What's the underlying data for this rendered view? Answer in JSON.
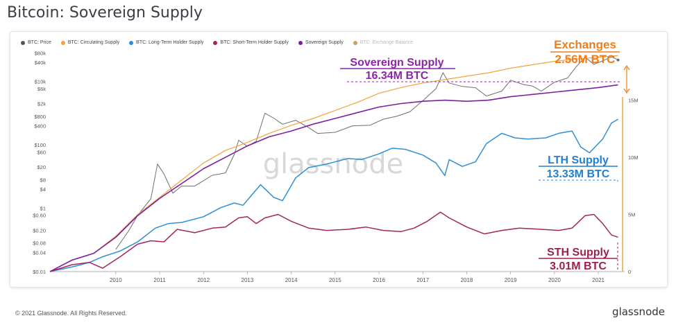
{
  "page": {
    "title": "Bitcoin: Sovereign Supply",
    "copyright": "© 2021 Glassnode. All Rights Reserved.",
    "brand": "glassnode"
  },
  "colors": {
    "price": "#6e6e6e",
    "circulating": "#f2a33a",
    "lth": "#2e8fd6",
    "sth": "#a3245e",
    "sovereign": "#7b1fa2",
    "exchange": "#b8860b",
    "exchange_annot": "#f07d19",
    "sovereign_annot": "#8e24aa",
    "lth_annot": "#1f7fd1",
    "sth_annot": "#9e1f4f"
  },
  "legend": [
    {
      "label": "BTC: Price",
      "color": "#555555",
      "faded": false
    },
    {
      "label": "BTC: Circulating Supply",
      "color": "#f2a33a",
      "faded": false
    },
    {
      "label": "BTC: Long-Term Holder Supply",
      "color": "#2e8fd6",
      "faded": false
    },
    {
      "label": "BTC: Short-Term Holder Supply",
      "color": "#a3245e",
      "faded": false
    },
    {
      "label": "Sovereign Supply",
      "color": "#7b1fa2",
      "faded": false
    },
    {
      "label": "BTC: Exchange Balance",
      "color": "#c8a060",
      "faded": true
    }
  ],
  "annotations": {
    "exchanges": {
      "title": "Exchanges",
      "value": "2.56M BTC"
    },
    "sovereign": {
      "title": "Sovereign Supply",
      "value": "16.34M BTC"
    },
    "lth": {
      "title": "LTH Supply",
      "value": "13.33M BTC"
    },
    "sth": {
      "title": "STH Supply",
      "value": "3.01M BTC"
    }
  },
  "watermark": "glassnode",
  "chart_data": {
    "type": "line",
    "title": "Bitcoin: Sovereign Supply",
    "x_ticks": [
      "2010",
      "2011",
      "2012",
      "2013",
      "2014",
      "2015",
      "2016",
      "2017",
      "2018",
      "2019",
      "2020",
      "2021"
    ],
    "y_left": {
      "scale": "log",
      "ticks": [
        "$80k",
        "$40k",
        "$10k",
        "$6k",
        "$2k",
        "$800",
        "$400",
        "$100",
        "$60",
        "$20",
        "$8",
        "$4",
        "$1",
        "$0.60",
        "$0.20",
        "$0.08",
        "$0.04",
        "$0.01"
      ],
      "tick_values": [
        80000,
        40000,
        10000,
        6000,
        2000,
        800,
        400,
        100,
        60,
        20,
        8,
        4,
        1,
        0.6,
        0.2,
        0.08,
        0.04,
        0.01
      ]
    },
    "y_right": {
      "scale": "linear",
      "ticks": [
        "15M",
        "10M",
        "5M",
        "0"
      ],
      "tick_values": [
        15000000,
        10000000,
        5000000,
        0
      ]
    },
    "series": [
      {
        "name": "BTC: Price",
        "axis": "left",
        "points": [
          [
            2010.5,
            0.05
          ],
          [
            2010.8,
            0.2
          ],
          [
            2011.0,
            0.6
          ],
          [
            2011.3,
            2
          ],
          [
            2011.45,
            25
          ],
          [
            2011.6,
            12
          ],
          [
            2011.8,
            3
          ],
          [
            2012.0,
            5
          ],
          [
            2012.3,
            5
          ],
          [
            2012.7,
            11
          ],
          [
            2013.0,
            13
          ],
          [
            2013.2,
            50
          ],
          [
            2013.3,
            140
          ],
          [
            2013.5,
            90
          ],
          [
            2013.7,
            130
          ],
          [
            2013.9,
            1000
          ],
          [
            2014.1,
            700
          ],
          [
            2014.3,
            450
          ],
          [
            2014.6,
            600
          ],
          [
            2014.9,
            350
          ],
          [
            2015.1,
            230
          ],
          [
            2015.5,
            250
          ],
          [
            2015.9,
            400
          ],
          [
            2016.3,
            420
          ],
          [
            2016.6,
            650
          ],
          [
            2016.9,
            800
          ],
          [
            2017.2,
            1100
          ],
          [
            2017.5,
            2500
          ],
          [
            2017.8,
            6000
          ],
          [
            2017.96,
            19000
          ],
          [
            2018.1,
            9000
          ],
          [
            2018.4,
            7000
          ],
          [
            2018.7,
            6400
          ],
          [
            2018.95,
            3500
          ],
          [
            2019.3,
            5000
          ],
          [
            2019.5,
            11000
          ],
          [
            2019.8,
            8000
          ],
          [
            2020.0,
            7200
          ],
          [
            2020.2,
            5000
          ],
          [
            2020.5,
            9500
          ],
          [
            2020.8,
            13000
          ],
          [
            2021.0,
            30000
          ],
          [
            2021.2,
            58000
          ],
          [
            2021.4,
            35000
          ],
          [
            2021.6,
            45000
          ],
          [
            2021.8,
            60000
          ],
          [
            2021.95,
            48000
          ]
        ]
      },
      {
        "name": "BTC: Circulating Supply",
        "axis": "right",
        "points": [
          [
            2009.0,
            0
          ],
          [
            2009.5,
            1000000
          ],
          [
            2010.0,
            1600000
          ],
          [
            2010.5,
            3100000
          ],
          [
            2011.0,
            5000000
          ],
          [
            2011.5,
            6500000
          ],
          [
            2012.0,
            8000000
          ],
          [
            2012.5,
            9500000
          ],
          [
            2013.0,
            10600000
          ],
          [
            2013.5,
            11300000
          ],
          [
            2014.0,
            12100000
          ],
          [
            2014.5,
            12800000
          ],
          [
            2015.0,
            13400000
          ],
          [
            2015.5,
            14100000
          ],
          [
            2016.0,
            14800000
          ],
          [
            2016.5,
            15600000
          ],
          [
            2017.0,
            16100000
          ],
          [
            2017.5,
            16500000
          ],
          [
            2018.0,
            16800000
          ],
          [
            2018.5,
            17100000
          ],
          [
            2019.0,
            17400000
          ],
          [
            2019.5,
            17800000
          ],
          [
            2020.0,
            18100000
          ],
          [
            2020.5,
            18400000
          ],
          [
            2021.0,
            18600000
          ],
          [
            2021.5,
            18750000
          ],
          [
            2021.95,
            18900000
          ]
        ]
      },
      {
        "name": "Sovereign Supply",
        "axis": "right",
        "points": [
          [
            2009.0,
            0
          ],
          [
            2009.5,
            1000000
          ],
          [
            2010.0,
            1600000
          ],
          [
            2010.5,
            3000000
          ],
          [
            2011.0,
            4900000
          ],
          [
            2011.5,
            6400000
          ],
          [
            2012.0,
            7700000
          ],
          [
            2012.5,
            9000000
          ],
          [
            2013.0,
            10000000
          ],
          [
            2013.5,
            11000000
          ],
          [
            2014.0,
            11800000
          ],
          [
            2014.5,
            12300000
          ],
          [
            2015.0,
            12900000
          ],
          [
            2015.5,
            13400000
          ],
          [
            2016.0,
            13900000
          ],
          [
            2016.5,
            14400000
          ],
          [
            2017.0,
            14700000
          ],
          [
            2017.5,
            14900000
          ],
          [
            2018.0,
            15000000
          ],
          [
            2018.5,
            14900000
          ],
          [
            2019.0,
            15000000
          ],
          [
            2019.5,
            15300000
          ],
          [
            2020.0,
            15500000
          ],
          [
            2020.5,
            15700000
          ],
          [
            2021.0,
            15900000
          ],
          [
            2021.5,
            16100000
          ],
          [
            2021.95,
            16340000
          ]
        ]
      },
      {
        "name": "BTC: Long-Term Holder Supply",
        "axis": "right",
        "points": [
          [
            2009.0,
            0
          ],
          [
            2009.5,
            400000
          ],
          [
            2009.9,
            800000
          ],
          [
            2010.2,
            1300000
          ],
          [
            2010.6,
            1800000
          ],
          [
            2011.0,
            2600000
          ],
          [
            2011.4,
            3800000
          ],
          [
            2011.7,
            4200000
          ],
          [
            2012.0,
            4300000
          ],
          [
            2012.5,
            4800000
          ],
          [
            2012.9,
            5600000
          ],
          [
            2013.2,
            6000000
          ],
          [
            2013.4,
            5800000
          ],
          [
            2013.6,
            6700000
          ],
          [
            2013.8,
            7600000
          ],
          [
            2014.1,
            6500000
          ],
          [
            2014.3,
            6200000
          ],
          [
            2014.6,
            8200000
          ],
          [
            2014.9,
            9100000
          ],
          [
            2015.3,
            9400000
          ],
          [
            2015.8,
            9900000
          ],
          [
            2016.1,
            9800000
          ],
          [
            2016.5,
            10300000
          ],
          [
            2016.8,
            10800000
          ],
          [
            2017.1,
            10700000
          ],
          [
            2017.5,
            10200000
          ],
          [
            2017.8,
            9500000
          ],
          [
            2018.0,
            8400000
          ],
          [
            2018.1,
            9800000
          ],
          [
            2018.4,
            9200000
          ],
          [
            2018.7,
            9600000
          ],
          [
            2018.95,
            11200000
          ],
          [
            2019.3,
            12100000
          ],
          [
            2019.6,
            11700000
          ],
          [
            2019.9,
            11600000
          ],
          [
            2020.3,
            11700000
          ],
          [
            2020.6,
            12100000
          ],
          [
            2020.9,
            12300000
          ],
          [
            2021.1,
            10900000
          ],
          [
            2021.3,
            10400000
          ],
          [
            2021.6,
            11600000
          ],
          [
            2021.8,
            13000000
          ],
          [
            2021.95,
            13330000
          ]
        ]
      },
      {
        "name": "BTC: Short-Term Holder Supply",
        "axis": "right",
        "points": [
          [
            2009.0,
            0
          ],
          [
            2009.5,
            600000
          ],
          [
            2009.9,
            800000
          ],
          [
            2010.2,
            300000
          ],
          [
            2010.6,
            1300000
          ],
          [
            2011.0,
            2400000
          ],
          [
            2011.3,
            2700000
          ],
          [
            2011.6,
            2600000
          ],
          [
            2011.9,
            3700000
          ],
          [
            2012.3,
            3400000
          ],
          [
            2012.7,
            3800000
          ],
          [
            2013.0,
            3900000
          ],
          [
            2013.3,
            4700000
          ],
          [
            2013.5,
            4800000
          ],
          [
            2013.7,
            4200000
          ],
          [
            2013.9,
            4700000
          ],
          [
            2014.2,
            5000000
          ],
          [
            2014.5,
            4400000
          ],
          [
            2014.9,
            3800000
          ],
          [
            2015.3,
            3600000
          ],
          [
            2015.8,
            3700000
          ],
          [
            2016.2,
            3900000
          ],
          [
            2016.6,
            3600000
          ],
          [
            2017.0,
            3500000
          ],
          [
            2017.3,
            3800000
          ],
          [
            2017.6,
            4400000
          ],
          [
            2017.9,
            5200000
          ],
          [
            2018.1,
            4700000
          ],
          [
            2018.5,
            3900000
          ],
          [
            2018.9,
            3300000
          ],
          [
            2019.3,
            3600000
          ],
          [
            2019.7,
            3800000
          ],
          [
            2020.2,
            3700000
          ],
          [
            2020.6,
            3600000
          ],
          [
            2020.9,
            3800000
          ],
          [
            2021.2,
            4900000
          ],
          [
            2021.4,
            5000000
          ],
          [
            2021.6,
            4200000
          ],
          [
            2021.8,
            3200000
          ],
          [
            2021.95,
            3010000
          ]
        ]
      }
    ]
  }
}
